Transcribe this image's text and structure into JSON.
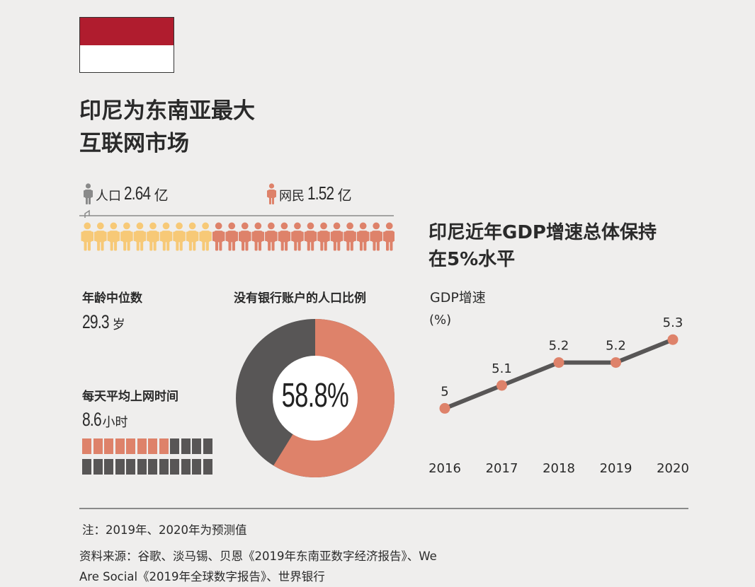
{
  "title": [
    "印尼为东南亚最大",
    "互联网市场"
  ],
  "flag": {
    "top_color": "#b01c2e",
    "bottom_color": "#ffffff"
  },
  "population": {
    "label": "人口",
    "value": "2.64",
    "unit": "亿",
    "icon": "person-icon",
    "color": "#8a8a8a"
  },
  "internet_users": {
    "label": "网民",
    "value": "1.52",
    "unit": "亿",
    "icon": "person-icon",
    "color": "#de826a"
  },
  "people_row": {
    "yellow_count": 10,
    "salmon_count": 14,
    "yellow_color": "#f7c977",
    "salmon_color": "#de826a"
  },
  "median_age": {
    "label": "年龄中位数",
    "value": "29.3",
    "unit": "岁"
  },
  "online_time": {
    "label": "每天平均上网时间",
    "value": "8.6",
    "unit": "小时",
    "filled_squares": 8.6,
    "total_squares": 24
  },
  "donut": {
    "title": "没有银行账户的人口比例",
    "percent_value": 58.8,
    "percent_label": "58.8%",
    "fill_color": "#de826a",
    "rest_color": "#585656"
  },
  "chart_data": {
    "type": "line",
    "title": "印尼近年GDP增速总体保持在5%水平",
    "title_lines": [
      "印尼近年GDP增速总体保持",
      "在5%水平"
    ],
    "ylabel": "GDP增速",
    "yunit": "(%)",
    "x": [
      "2016",
      "2017",
      "2018",
      "2019",
      "2020"
    ],
    "series": [
      {
        "values": [
          5,
          5.1,
          5.2,
          5.2,
          5.3
        ]
      }
    ],
    "data_labels": [
      "5",
      "5.1",
      "5.2",
      "5.2",
      "5.3"
    ],
    "ylim": [
      4.85,
      5.35
    ],
    "line_color": "#585656",
    "marker_color": "#de826a",
    "grid": false
  },
  "footer": {
    "note": "注：2019年、2020年为预测值",
    "source_lines": [
      "资料来源：谷歌、淡马锡、贝恩《2019年东南亚数字经济报告》、We",
      "Are Social《2019年全球数字报告》、世界银行"
    ]
  }
}
